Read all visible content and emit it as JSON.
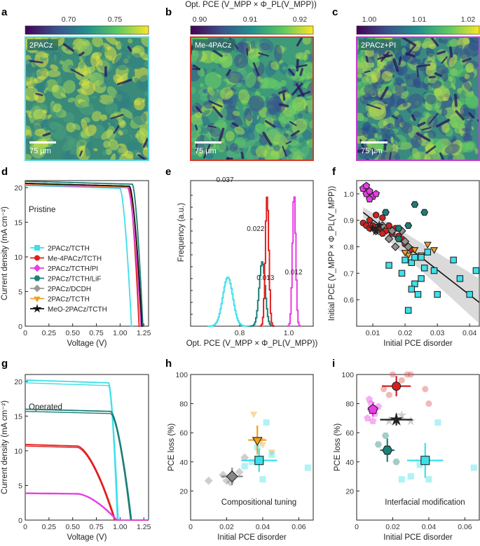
{
  "panels": {
    "a": "a",
    "b": "b",
    "c": "c",
    "d": "d",
    "e": "e",
    "f": "f",
    "g": "g",
    "h": "h",
    "i": "i"
  },
  "maps": {
    "colorbar_title": "Opt. PCE (V_MPP × Φ_PL(V_MPP))",
    "scalebar": "75 µm",
    "a": {
      "label": "2PACz",
      "ticks": [
        "0.70",
        "0.75"
      ],
      "frame_color": "#5bd6e0"
    },
    "b": {
      "label": "Me-4PACz",
      "ticks": [
        "0.90",
        "0.91",
        "0.92"
      ],
      "frame_color": "#d43a2a"
    },
    "c": {
      "label": "2PACz+PI",
      "ticks": [
        "1.00",
        "1.01",
        "1.02"
      ],
      "frame_color": "#c63bd0"
    }
  },
  "chart_data": [
    {
      "panel": "d",
      "type": "line",
      "xlabel": "Voltage (V)",
      "ylabel": "Current density (mA cm⁻²)",
      "annotation": "Pristine",
      "xlim": [
        0,
        1.3
      ],
      "ylim": [
        0,
        21
      ],
      "xticks": [
        "0",
        "0.25",
        "0.50",
        "0.75",
        "1.00",
        "1.25"
      ],
      "yticks": [
        "0",
        "5",
        "10",
        "15",
        "20"
      ],
      "series": [
        {
          "name": "2PACz/TCTH",
          "color": "#3de0ea",
          "marker": "square",
          "jsc": 20.3,
          "voc": 1.12,
          "knee": 1.0
        },
        {
          "name": "Me-4PACz/TCTH",
          "color": "#e0201e",
          "marker": "circle",
          "jsc": 20.6,
          "voc": 1.2,
          "knee": 1.09
        },
        {
          "name": "2PACz/TCTH/PI",
          "color": "#e83ce6",
          "marker": "diamond",
          "jsc": 20.4,
          "voc": 1.22,
          "knee": 1.08
        },
        {
          "name": "2PACz/TCTH/LiF",
          "color": "#1c7f78",
          "marker": "hexagon",
          "jsc": 20.9,
          "voc": 1.24,
          "knee": 1.13
        },
        {
          "name": "2PACz/DCDH",
          "color": "#999999",
          "marker": "diamond",
          "jsc": 20.5,
          "voc": 1.23,
          "knee": 1.1
        },
        {
          "name": "2PACz/TCTH",
          "color": "#f0a020",
          "marker": "triangle",
          "jsc": 20.5,
          "voc": 1.23,
          "knee": 1.1
        },
        {
          "name": "MeO-2PACz/TCTH",
          "color": "#111111",
          "marker": "star",
          "jsc": 20.6,
          "voc": 1.23,
          "knee": 1.1
        }
      ]
    },
    {
      "panel": "e",
      "type": "line",
      "xlabel": "Opt. PCE (V_MPP × Φ_PL(V_MPP))",
      "ylabel": "Frequency (a.u.)",
      "xlim": [
        0.6,
        1.1
      ],
      "xticks": [
        "0.8",
        "1.0"
      ],
      "series": [
        {
          "name": "2PACz",
          "color": "#3de0ea",
          "center": 0.75,
          "width_label": "0.037"
        },
        {
          "name": "2PACz/TCTH/LiF",
          "color": "#1c7f78",
          "center": 0.89,
          "width_label": "0.022"
        },
        {
          "name": "Me-4PACz",
          "color": "#e0201e",
          "center": 0.91,
          "width_label": "0.013"
        },
        {
          "name": "2PACz+PI",
          "color": "#e83ce6",
          "center": 1.02,
          "width_label": "0.012"
        }
      ]
    },
    {
      "panel": "f",
      "type": "scatter",
      "xlabel": "Initial PCE disorder",
      "ylabel": "Initial PCE (V_MPP × Φ_PL(V_MPP))",
      "xlim": [
        0.005,
        0.043
      ],
      "ylim": [
        0.5,
        1.05
      ],
      "xticks": [
        "0.01",
        "0.02",
        "0.03",
        "0.04"
      ],
      "yticks": [
        "0.6",
        "0.7",
        "0.8",
        "0.9",
        "1.0"
      ],
      "fit": {
        "x0": 0.007,
        "y0": 0.93,
        "x1": 0.043,
        "y1": 0.59
      },
      "series": [
        {
          "name": "2PACz+PI",
          "color": "#e83ce6",
          "marker": "pentagon",
          "x": [
            0.007,
            0.008,
            0.009,
            0.01,
            0.011,
            0.009,
            0.008
          ],
          "y": [
            1.02,
            1.0,
            1.01,
            0.99,
            1.0,
            0.98,
            1.03
          ]
        },
        {
          "name": "Me-4PACz",
          "color": "#d42020",
          "marker": "circle",
          "x": [
            0.007,
            0.008,
            0.009,
            0.01,
            0.011,
            0.012,
            0.013,
            0.014,
            0.015,
            0.016,
            0.017,
            0.018,
            0.019,
            0.02,
            0.022,
            0.013,
            0.011,
            0.009
          ],
          "y": [
            0.89,
            0.88,
            0.9,
            0.88,
            0.92,
            0.87,
            0.91,
            0.86,
            0.88,
            0.85,
            0.87,
            0.84,
            0.83,
            0.81,
            0.79,
            0.85,
            0.86,
            0.87
          ]
        },
        {
          "name": "2PACz/DCDH",
          "color": "#909090",
          "marker": "diamond",
          "x": [
            0.011,
            0.013,
            0.015,
            0.017,
            0.019,
            0.02,
            0.021,
            0.016
          ],
          "y": [
            0.86,
            0.88,
            0.83,
            0.8,
            0.86,
            0.82,
            0.8,
            0.86
          ]
        },
        {
          "name": "2PACz/TCTH/LiF",
          "color": "#1c7f78",
          "marker": "hexagon",
          "x": [
            0.014,
            0.018,
            0.021,
            0.023,
            0.026,
            0.018
          ],
          "y": [
            0.93,
            0.87,
            0.88,
            0.96,
            0.93,
            0.83
          ]
        },
        {
          "name": "2PACz/TCTH",
          "color": "#f0a020",
          "marker": "triangle",
          "x": [
            0.021,
            0.023,
            0.025,
            0.027,
            0.029,
            0.02
          ],
          "y": [
            0.77,
            0.79,
            0.77,
            0.81,
            0.79,
            0.78
          ]
        },
        {
          "name": "MeO-2PACz/TCTH",
          "color": "#222222",
          "marker": "star",
          "x": [
            0.01,
            0.012,
            0.011
          ],
          "y": [
            0.87,
            0.88,
            0.86
          ]
        },
        {
          "name": "2PACz",
          "color": "#3de0ea",
          "marker": "square",
          "x": [
            0.015,
            0.019,
            0.021,
            0.022,
            0.023,
            0.024,
            0.025,
            0.026,
            0.027,
            0.029,
            0.03,
            0.022,
            0.02,
            0.035,
            0.037,
            0.04,
            0.042,
            0.025,
            0.023
          ],
          "y": [
            0.73,
            0.7,
            0.56,
            0.74,
            0.66,
            0.62,
            0.76,
            0.72,
            0.78,
            0.71,
            0.62,
            0.64,
            0.75,
            0.75,
            0.68,
            0.62,
            0.71,
            0.68,
            0.76
          ]
        }
      ]
    },
    {
      "panel": "g",
      "type": "line",
      "xlabel": "Voltage (V)",
      "ylabel": "Current density (mA cm⁻²)",
      "annotation": "Operated",
      "xlim": [
        0,
        1.3
      ],
      "ylim": [
        0,
        21
      ],
      "xticks": [
        "0",
        "0.25",
        "0.50",
        "0.75",
        "1.00",
        "1.25"
      ],
      "yticks": [
        "0",
        "5",
        "10",
        "15",
        "20"
      ],
      "series": [
        {
          "name": "2PACz",
          "color": "#3de0ea",
          "jsc": 20.2,
          "voc": 0.98,
          "knee": 0.88
        },
        {
          "name": "2PACz/TCTH/LiF",
          "color": "#1c7f78",
          "jsc": 16.0,
          "voc": 1.12,
          "knee": 0.9
        },
        {
          "name": "Me-4PACz",
          "color": "#e0201e",
          "jsc": 10.9,
          "voc": 0.95,
          "knee": 0.55
        },
        {
          "name": "2PACz+PI",
          "color": "#e83ce6",
          "jsc": 3.9,
          "voc": 0.97,
          "knee": 0.55
        }
      ]
    },
    {
      "panel": "h",
      "type": "scatter",
      "xlabel": "Initial PCE disorder",
      "ylabel": "PCE loss (%)",
      "annotation": "Compositional tuning",
      "xlim": [
        0,
        0.068
      ],
      "ylim": [
        0,
        100
      ],
      "xticks": [
        "0",
        "0.02",
        "0.04",
        "0.06"
      ],
      "yticks": [
        "20",
        "40",
        "60",
        "80",
        "100"
      ],
      "means": [
        {
          "name": "2PACz/DCDH",
          "color": "#888888",
          "marker": "diamond",
          "x": 0.023,
          "y": 30,
          "xerr": 0.006,
          "yerr": 6
        },
        {
          "name": "2PACz/TCTH",
          "color": "#f0a020",
          "marker": "triangle",
          "x": 0.037,
          "y": 55,
          "xerr": 0.005,
          "yerr": 10
        },
        {
          "name": "2PACz",
          "color": "#3de0ea",
          "marker": "square",
          "x": 0.038,
          "y": 41,
          "xerr": 0.01,
          "yerr": 8
        }
      ],
      "points": [
        {
          "color": "#888888",
          "marker": "diamond",
          "x": [
            0.01,
            0.02,
            0.027,
            0.03,
            0.022,
            0.018
          ],
          "y": [
            27,
            27,
            33,
            43,
            26,
            31
          ]
        },
        {
          "color": "#f0a020",
          "marker": "triangle",
          "x": [
            0.035,
            0.039,
            0.045,
            0.04
          ],
          "y": [
            73,
            55,
            47,
            52
          ]
        },
        {
          "color": "#3de0ea",
          "marker": "square",
          "x": [
            0.034,
            0.037,
            0.04,
            0.042,
            0.045,
            0.065,
            0.03
          ],
          "y": [
            40,
            50,
            28,
            67,
            45,
            36,
            37
          ]
        }
      ]
    },
    {
      "panel": "i",
      "type": "scatter",
      "xlabel": "Initial PCE disorder",
      "ylabel": "PCE loss (%)",
      "annotation": "Interfacial modification",
      "xlim": [
        0,
        0.068
      ],
      "ylim": [
        0,
        100
      ],
      "xticks": [
        "0",
        "0.02",
        "0.04",
        "0.06"
      ],
      "yticks": [
        "20",
        "40",
        "60",
        "80",
        "100"
      ],
      "means": [
        {
          "name": "2PACz+PI",
          "color": "#e83ce6",
          "marker": "pentagon",
          "x": 0.009,
          "y": 76,
          "xerr": 0.003,
          "yerr": 5
        },
        {
          "name": "Me-4PACz",
          "color": "#d42020",
          "marker": "circle",
          "x": 0.022,
          "y": 92,
          "xerr": 0.008,
          "yerr": 7
        },
        {
          "name": "MeO-2PACz/TCTH",
          "color": "#222222",
          "marker": "star",
          "x": 0.022,
          "y": 69,
          "xerr": 0.009,
          "yerr": 4
        },
        {
          "name": "2PACz/TCTH/LiF",
          "color": "#1c7f78",
          "marker": "hexagon",
          "x": 0.017,
          "y": 48,
          "xerr": 0.004,
          "yerr": 8
        },
        {
          "name": "2PACz",
          "color": "#3de0ea",
          "marker": "square",
          "x": 0.038,
          "y": 41,
          "xerr": 0.01,
          "yerr": 12
        }
      ],
      "points": [
        {
          "color": "#e83ce6",
          "marker": "pentagon",
          "x": [
            0.006,
            0.008,
            0.01,
            0.012,
            0.007,
            0.009
          ],
          "y": [
            70,
            80,
            73,
            78,
            83,
            68
          ]
        },
        {
          "color": "#e05050",
          "marker": "circle",
          "x": [
            0.015,
            0.02,
            0.025,
            0.03,
            0.038,
            0.04,
            0.018,
            0.028
          ],
          "y": [
            90,
            100,
            96,
            100,
            90,
            80,
            86,
            100
          ]
        },
        {
          "color": "#888888",
          "marker": "star",
          "x": [
            0.018,
            0.025,
            0.03
          ],
          "y": [
            68,
            72,
            68
          ]
        },
        {
          "color": "#1c7f78",
          "marker": "hexagon",
          "x": [
            0.012,
            0.016,
            0.022
          ],
          "y": [
            52,
            58,
            40
          ]
        },
        {
          "color": "#3de0ea",
          "marker": "square",
          "x": [
            0.03,
            0.035,
            0.04,
            0.045,
            0.065,
            0.025
          ],
          "y": [
            30,
            38,
            28,
            67,
            36,
            28
          ]
        }
      ]
    }
  ]
}
